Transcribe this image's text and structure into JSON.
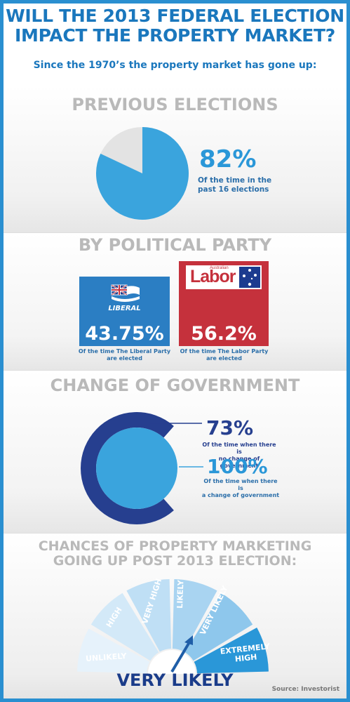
{
  "header": {
    "title_line1": "WILL THE 2013 FEDERAL ELECTION",
    "title_line2": "IMPACT THE PROPERTY MARKET?",
    "subtitle": "Since the 1970’s the property market has gone up:"
  },
  "previous_elections": {
    "title": "PREVIOUS ELECTIONS",
    "percent_text": "82%",
    "percent_value": 82,
    "caption_line1": "Of the time in the",
    "caption_line2": "past 16 elections"
  },
  "by_party": {
    "title": "BY POLITICAL PARTY",
    "liberal": {
      "logo_text": "LIBERAL",
      "percent_text": "43.75%",
      "caption_line1": "Of the time The Liberal Party",
      "caption_line2": "are elected"
    },
    "labor": {
      "logo_text": "Labor",
      "logo_small": "Australian",
      "percent_text": "56.2%",
      "caption_line1": "Of the time The Labor Party",
      "caption_line2": "are elected"
    }
  },
  "change_of_government": {
    "title": "CHANGE OF GOVERNMENT",
    "no_change": {
      "percent_text": "73%",
      "percent_value": 73,
      "caption_line1": "Of the time when there is",
      "caption_line2": "no change of government"
    },
    "change": {
      "percent_text": "100%",
      "percent_value": 100,
      "caption_line1": "Of the time when there is",
      "caption_line2": "a change of government"
    }
  },
  "chances": {
    "title_line1": "CHANCES OF PROPERTY MARKETING",
    "title_line2": "GOING UP POST 2013 ELECTION:",
    "levels": [
      "UNLIKELY",
      "HIGH",
      "VERY HIGH",
      "LIKELY",
      "VERY LIKELY",
      "EXTREMELY HIGH"
    ],
    "extremely_line1": "EXTREMELY",
    "extremely_line2": "HIGH",
    "selected_level": "VERY LIKELY",
    "result": "VERY LIKELY"
  },
  "source": "Source: Investorist",
  "colors": {
    "primary_blue": "#2a97d8",
    "dark_blue": "#263f8f",
    "liberal_blue": "#2b7ec3",
    "labor_red": "#c5313c",
    "grey_heading": "#b9b9b9"
  }
}
